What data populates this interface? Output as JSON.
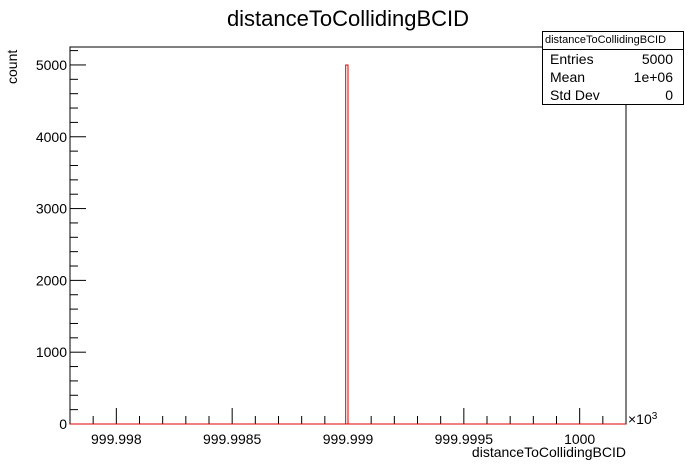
{
  "chart_data": {
    "type": "bar",
    "title": "distanceToCollidingBCID",
    "xlabel": "distanceToCollidingBCID",
    "ylabel": "count",
    "x_multiplier_label": "×10",
    "x_multiplier_exponent": "3",
    "xlim": [
      999.9978,
      1000.0002
    ],
    "ylim": [
      0,
      5250
    ],
    "x_ticks": [
      {
        "value": 999.998,
        "label": "999.998"
      },
      {
        "value": 999.9985,
        "label": "999.9985"
      },
      {
        "value": 999.999,
        "label": "999.999"
      },
      {
        "value": 999.9995,
        "label": "999.9995"
      },
      {
        "value": 1000.0,
        "label": "1000"
      }
    ],
    "y_ticks": [
      {
        "value": 0,
        "label": "0"
      },
      {
        "value": 1000,
        "label": "1000"
      },
      {
        "value": 2000,
        "label": "2000"
      },
      {
        "value": 3000,
        "label": "3000"
      },
      {
        "value": 4000,
        "label": "4000"
      },
      {
        "value": 5000,
        "label": "5000"
      }
    ],
    "bins": [
      {
        "x_low": 999.99899,
        "x_high": 999.999,
        "value": 5000
      }
    ],
    "line_color": "#e00000"
  },
  "stats_box": {
    "title": "distanceToCollidingBCID",
    "rows": [
      {
        "label": "Entries",
        "value": "5000"
      },
      {
        "label": "Mean",
        "value": "1e+06"
      },
      {
        "label": "Std Dev",
        "value": "0"
      }
    ]
  }
}
